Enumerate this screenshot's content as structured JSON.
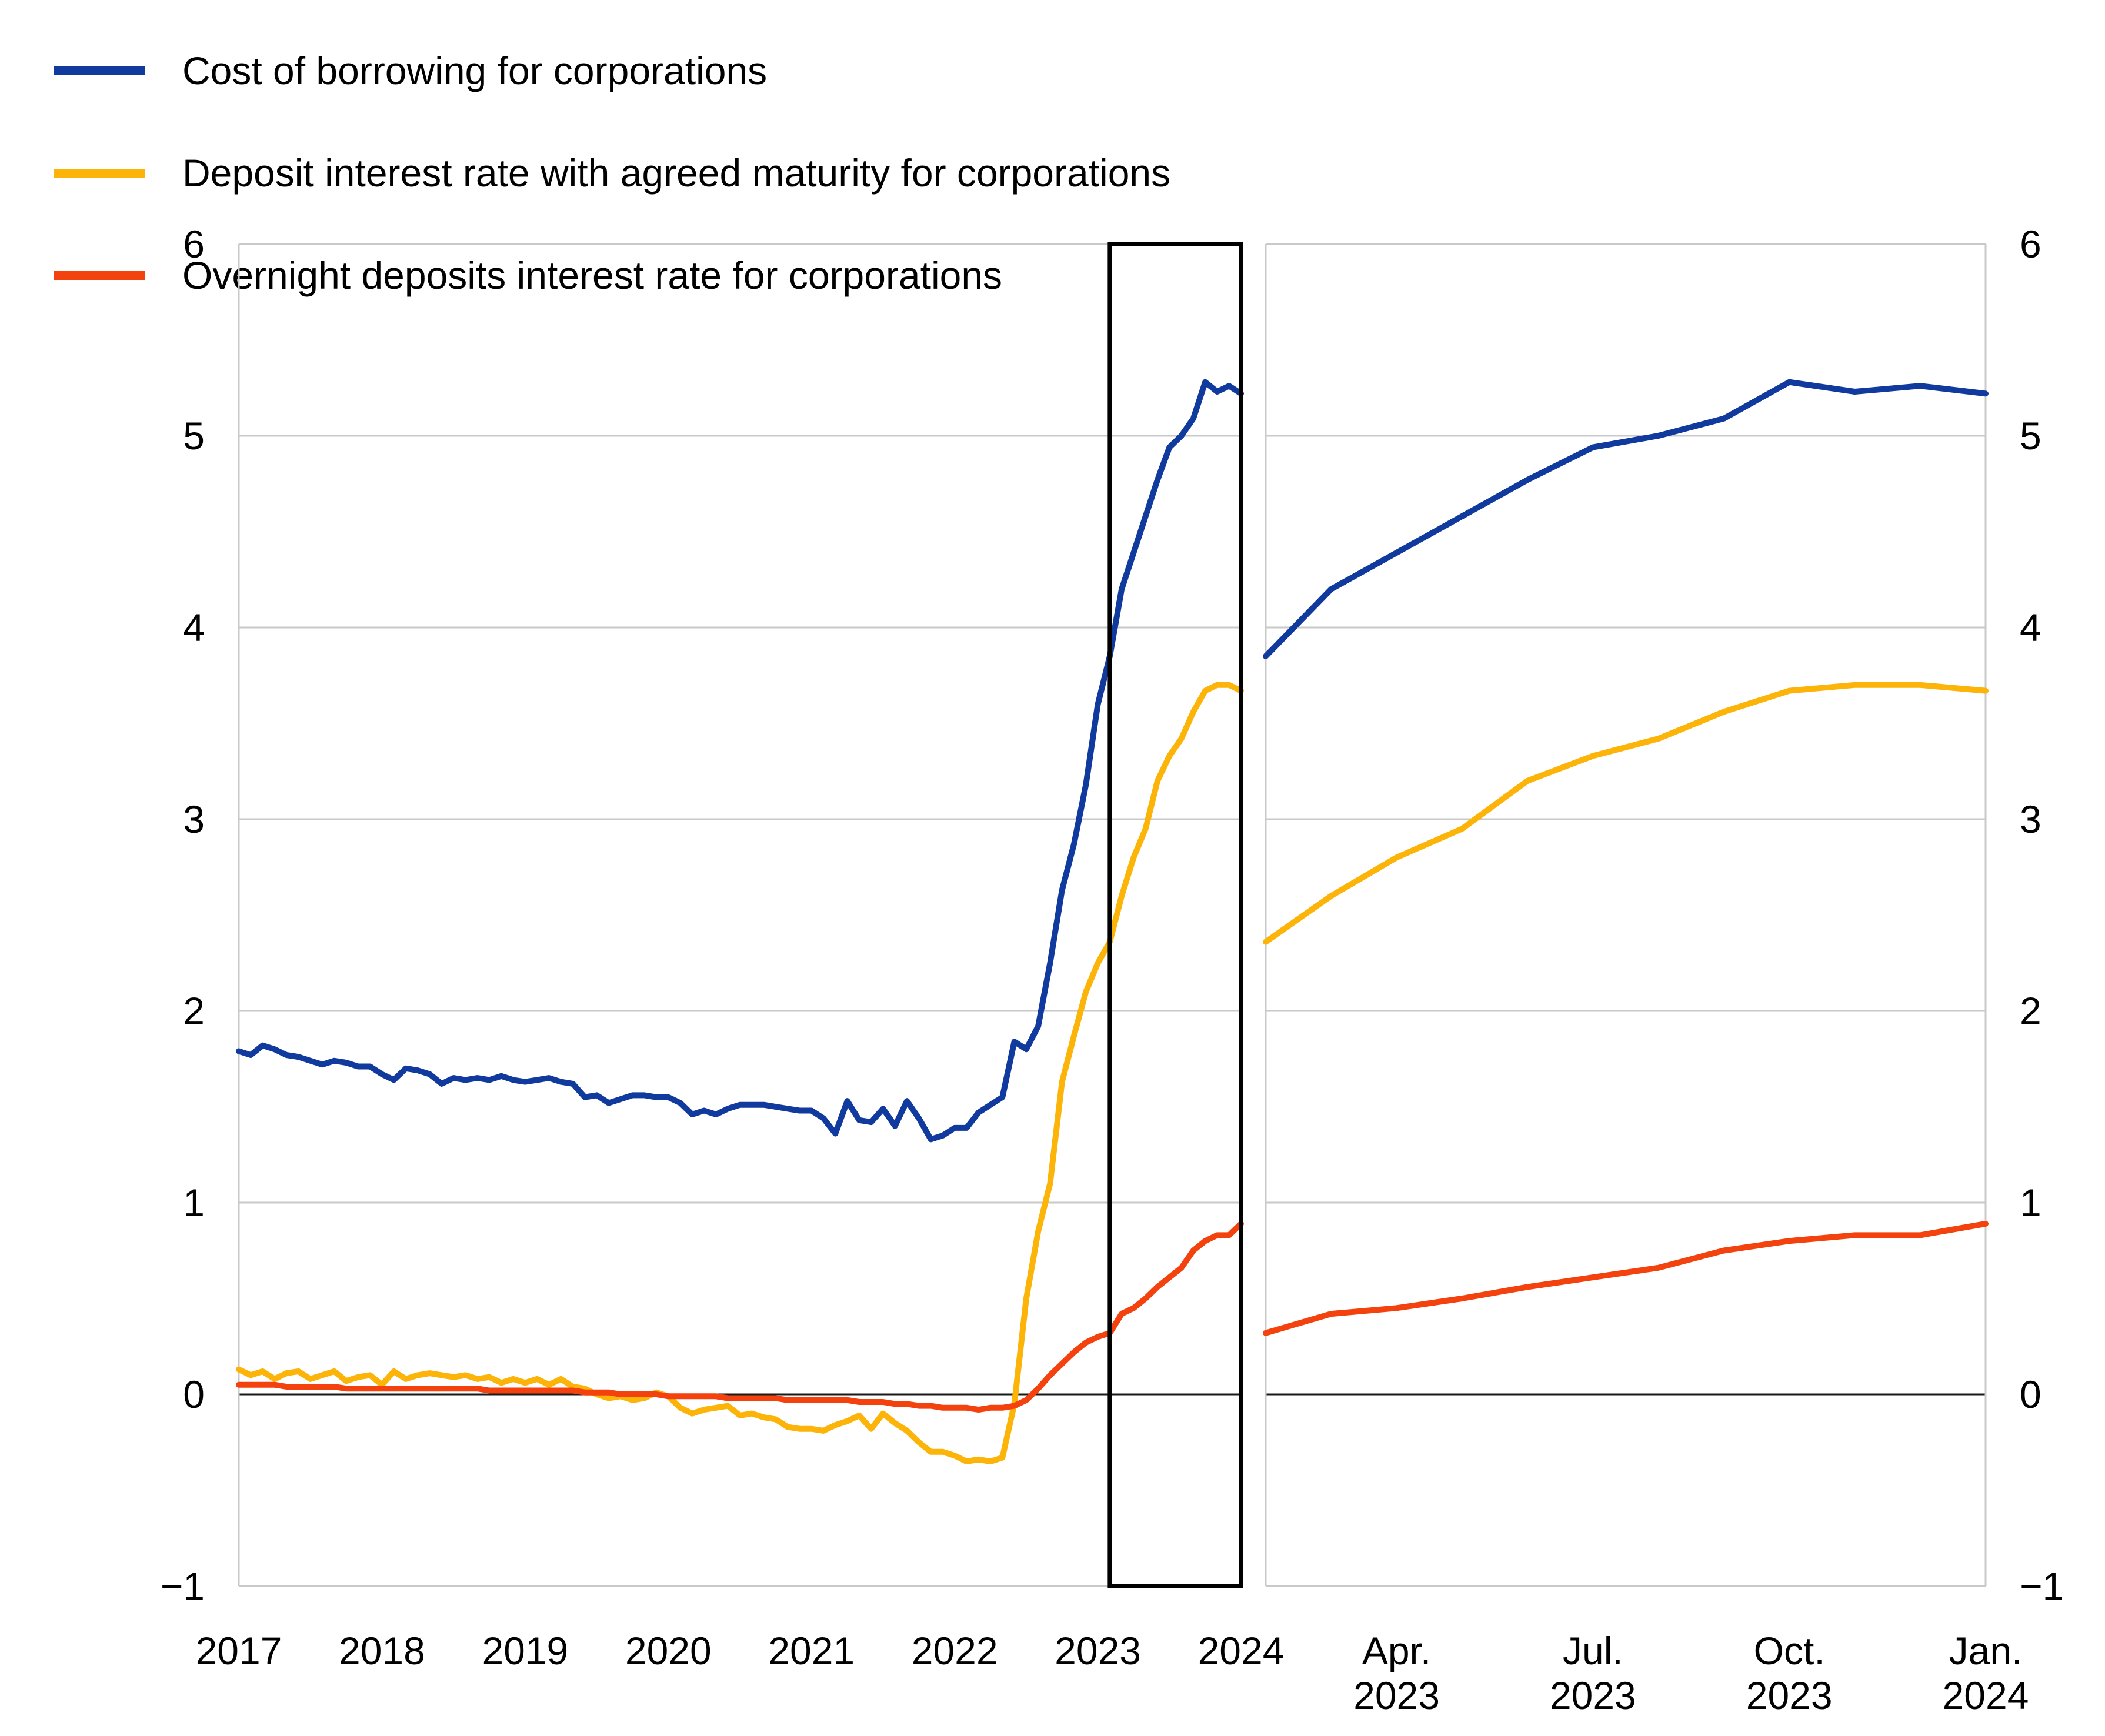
{
  "legend": {
    "items": [
      {
        "id": "cost-of-borrowing",
        "label": "Cost of borrowing for corporations",
        "color": "#113a9e"
      },
      {
        "id": "deposit-agreed-maturity",
        "label": "Deposit interest rate with agreed maturity for corporations",
        "color": "#fdb408"
      },
      {
        "id": "overnight-deposits",
        "label": "Overnight deposits interest rate for corporations",
        "color": "#f4420e"
      }
    ]
  },
  "colors": {
    "background": "#ffffff",
    "grid": "#c9c9c9",
    "panel_border": "#c9c9c9",
    "zero_line": "#1a1a1a",
    "highlight_box": "#000000",
    "text": "#000000"
  },
  "chart_data": [
    {
      "id": "main-panel",
      "type": "line",
      "frequency": "monthly",
      "x_start": "2017-01",
      "x_end": "2024-01",
      "x_tick_labels": [
        "2017",
        "2018",
        "2019",
        "2020",
        "2021",
        "2022",
        "2023",
        "2024"
      ],
      "x_tick_month_indices": [
        0,
        12,
        24,
        36,
        48,
        60,
        72,
        84
      ],
      "y_tick_labels": [
        "6",
        "5",
        "4",
        "3",
        "2",
        "1",
        "0",
        "−1"
      ],
      "y_axis_side": "left",
      "ylim": [
        -1,
        6
      ],
      "grid": "horizontal",
      "zero_line": true,
      "legend_position": "top-left",
      "highlight_box": {
        "from": "2023-02",
        "to": "2024-01",
        "meaning": "period enlarged in right panel"
      },
      "series": [
        {
          "name": "Cost of borrowing for corporations",
          "color": "#113a9e",
          "values": [
            1.79,
            1.77,
            1.82,
            1.8,
            1.77,
            1.76,
            1.74,
            1.72,
            1.74,
            1.73,
            1.71,
            1.71,
            1.67,
            1.64,
            1.7,
            1.69,
            1.67,
            1.62,
            1.65,
            1.64,
            1.65,
            1.64,
            1.66,
            1.64,
            1.63,
            1.64,
            1.65,
            1.63,
            1.62,
            1.55,
            1.56,
            1.52,
            1.54,
            1.56,
            1.56,
            1.55,
            1.55,
            1.52,
            1.46,
            1.48,
            1.46,
            1.49,
            1.51,
            1.51,
            1.51,
            1.5,
            1.49,
            1.48,
            1.48,
            1.44,
            1.36,
            1.53,
            1.43,
            1.42,
            1.49,
            1.4,
            1.53,
            1.44,
            1.33,
            1.35,
            1.39,
            1.39,
            1.47,
            1.51,
            1.55,
            1.84,
            1.8,
            1.92,
            2.25,
            2.63,
            2.87,
            3.18,
            3.6,
            3.85,
            4.2,
            4.39,
            4.58,
            4.77,
            4.94,
            5.0,
            5.09,
            5.28,
            5.23,
            5.26,
            5.22
          ]
        },
        {
          "name": "Deposit interest rate with agreed maturity for corporations",
          "color": "#fdb408",
          "values": [
            0.13,
            0.1,
            0.12,
            0.08,
            0.11,
            0.12,
            0.08,
            0.1,
            0.12,
            0.07,
            0.09,
            0.1,
            0.05,
            0.12,
            0.08,
            0.1,
            0.11,
            0.1,
            0.09,
            0.1,
            0.08,
            0.09,
            0.06,
            0.08,
            0.06,
            0.08,
            0.05,
            0.08,
            0.04,
            0.03,
            0.0,
            -0.02,
            -0.01,
            -0.03,
            -0.02,
            0.01,
            -0.01,
            -0.07,
            -0.1,
            -0.08,
            -0.07,
            -0.06,
            -0.11,
            -0.1,
            -0.12,
            -0.13,
            -0.17,
            -0.18,
            -0.18,
            -0.19,
            -0.16,
            -0.14,
            -0.11,
            -0.18,
            -0.1,
            -0.15,
            -0.19,
            -0.25,
            -0.3,
            -0.3,
            -0.32,
            -0.35,
            -0.34,
            -0.35,
            -0.33,
            -0.05,
            0.5,
            0.85,
            1.1,
            1.63,
            1.87,
            2.1,
            2.25,
            2.36,
            2.6,
            2.8,
            2.95,
            3.2,
            3.33,
            3.42,
            3.56,
            3.67,
            3.7,
            3.7,
            3.67
          ]
        },
        {
          "name": "Overnight deposits interest rate for corporations",
          "color": "#f4420e",
          "values": [
            0.05,
            0.05,
            0.05,
            0.05,
            0.04,
            0.04,
            0.04,
            0.04,
            0.04,
            0.03,
            0.03,
            0.03,
            0.03,
            0.03,
            0.03,
            0.03,
            0.03,
            0.03,
            0.03,
            0.03,
            0.03,
            0.02,
            0.02,
            0.02,
            0.02,
            0.02,
            0.02,
            0.02,
            0.02,
            0.01,
            0.01,
            0.01,
            0.0,
            0.0,
            0.0,
            0.0,
            -0.01,
            -0.01,
            -0.01,
            -0.01,
            -0.01,
            -0.02,
            -0.02,
            -0.02,
            -0.02,
            -0.02,
            -0.03,
            -0.03,
            -0.03,
            -0.03,
            -0.03,
            -0.03,
            -0.04,
            -0.04,
            -0.04,
            -0.05,
            -0.05,
            -0.06,
            -0.06,
            -0.07,
            -0.07,
            -0.07,
            -0.08,
            -0.07,
            -0.07,
            -0.06,
            -0.03,
            0.03,
            0.1,
            0.16,
            0.22,
            0.27,
            0.3,
            0.32,
            0.42,
            0.45,
            0.5,
            0.56,
            0.61,
            0.66,
            0.75,
            0.8,
            0.83,
            0.83,
            0.89
          ]
        }
      ]
    },
    {
      "id": "zoom-panel",
      "type": "line",
      "frequency": "monthly",
      "x_start": "2023-02",
      "x_end": "2024-01",
      "x_tick_labels": [
        [
          "Apr.",
          "2023"
        ],
        [
          "Jul.",
          "2023"
        ],
        [
          "Oct.",
          "2023"
        ],
        [
          "Jan.",
          "2024"
        ]
      ],
      "x_tick_month_indices": [
        2,
        5,
        8,
        11
      ],
      "y_tick_labels": [
        "6",
        "5",
        "4",
        "3",
        "2",
        "1",
        "0",
        "−1"
      ],
      "y_axis_side": "right",
      "ylim": [
        -1,
        6
      ],
      "grid": "horizontal",
      "zero_line": true,
      "series": [
        {
          "name": "Cost of borrowing for corporations",
          "color": "#113a9e",
          "values": [
            3.85,
            4.2,
            4.39,
            4.58,
            4.77,
            4.94,
            5.0,
            5.09,
            5.28,
            5.23,
            5.26,
            5.22
          ]
        },
        {
          "name": "Deposit interest rate with agreed maturity for corporations",
          "color": "#fdb408",
          "values": [
            2.36,
            2.6,
            2.8,
            2.95,
            3.2,
            3.33,
            3.42,
            3.56,
            3.67,
            3.7,
            3.7,
            3.67
          ]
        },
        {
          "name": "Overnight deposits interest rate for corporations",
          "color": "#f4420e",
          "values": [
            0.32,
            0.42,
            0.45,
            0.5,
            0.56,
            0.61,
            0.66,
            0.75,
            0.8,
            0.83,
            0.83,
            0.89
          ]
        }
      ]
    }
  ]
}
